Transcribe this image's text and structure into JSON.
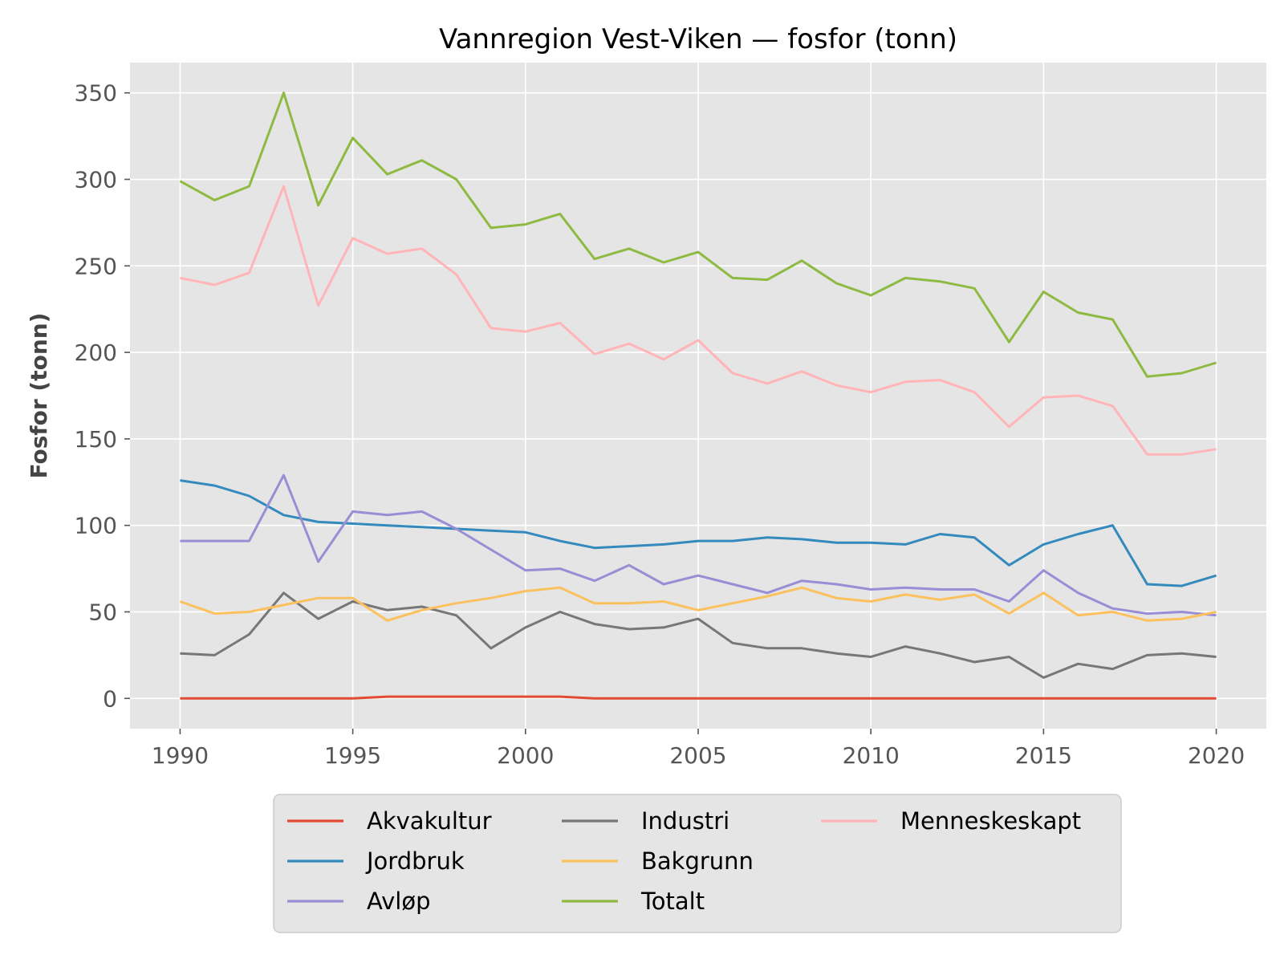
{
  "chart_data": {
    "type": "line",
    "title": "Vannregion Vest-Viken — fosfor (tonn)",
    "xlabel": "",
    "ylabel": "Fosfor (tonn)",
    "xlim": [
      1988.55,
      2021.45
    ],
    "ylim": [
      -17.5,
      367.5
    ],
    "xticks": [
      1990,
      1995,
      2000,
      2005,
      2010,
      2015,
      2020
    ],
    "yticks": [
      0,
      50,
      100,
      150,
      200,
      250,
      300,
      350
    ],
    "grid": true,
    "legend_position": "bottom-center",
    "x": [
      1990,
      1991,
      1992,
      1993,
      1994,
      1995,
      1996,
      1997,
      1998,
      1999,
      2000,
      2001,
      2002,
      2003,
      2004,
      2005,
      2006,
      2007,
      2008,
      2009,
      2010,
      2011,
      2012,
      2013,
      2014,
      2015,
      2016,
      2017,
      2018,
      2019,
      2020
    ],
    "series": [
      {
        "name": "Akvakultur",
        "color": "#E24A33",
        "values": [
          0,
          0,
          0,
          0,
          0,
          0,
          1,
          1,
          1,
          1,
          1,
          1,
          0,
          0,
          0,
          0,
          0,
          0,
          0,
          0,
          0,
          0,
          0,
          0,
          0,
          0,
          0,
          0,
          0,
          0,
          0
        ]
      },
      {
        "name": "Jordbruk",
        "color": "#348ABD",
        "values": [
          126,
          123,
          117,
          106,
          102,
          101,
          100,
          99,
          98,
          97,
          96,
          91,
          87,
          88,
          89,
          91,
          91,
          93,
          92,
          90,
          90,
          89,
          95,
          93,
          77,
          89,
          95,
          100,
          66,
          65,
          71
        ]
      },
      {
        "name": "Avløp",
        "color": "#988ED5",
        "values": [
          91,
          91,
          91,
          129,
          79,
          108,
          106,
          108,
          98,
          86,
          74,
          75,
          68,
          77,
          66,
          71,
          66,
          61,
          68,
          66,
          63,
          64,
          63,
          63,
          56,
          74,
          61,
          52,
          49,
          50,
          48
        ]
      },
      {
        "name": "Industri",
        "color": "#777777",
        "values": [
          26,
          25,
          37,
          61,
          46,
          56,
          51,
          53,
          48,
          29,
          41,
          50,
          43,
          40,
          41,
          46,
          32,
          29,
          29,
          26,
          24,
          30,
          26,
          21,
          24,
          12,
          20,
          17,
          25,
          26,
          24
        ]
      },
      {
        "name": "Bakgrunn",
        "color": "#FBC15E",
        "values": [
          56,
          49,
          50,
          54,
          58,
          58,
          45,
          51,
          55,
          58,
          62,
          64,
          55,
          55,
          56,
          51,
          55,
          59,
          64,
          58,
          56,
          60,
          57,
          60,
          49,
          61,
          48,
          50,
          45,
          46,
          50
        ]
      },
      {
        "name": "Totalt",
        "color": "#8EBA42",
        "values": [
          299,
          288,
          296,
          350,
          285,
          324,
          303,
          311,
          300,
          272,
          274,
          280,
          254,
          260,
          252,
          258,
          243,
          242,
          253,
          240,
          233,
          243,
          241,
          237,
          206,
          235,
          223,
          219,
          186,
          188,
          194
        ]
      },
      {
        "name": "Menneskeskapt",
        "color": "#FFB5B8",
        "values": [
          243,
          239,
          246,
          296,
          227,
          266,
          257,
          260,
          245,
          214,
          212,
          217,
          199,
          205,
          196,
          207,
          188,
          182,
          189,
          181,
          177,
          183,
          184,
          177,
          157,
          174,
          175,
          169,
          141,
          141,
          144
        ]
      }
    ]
  }
}
